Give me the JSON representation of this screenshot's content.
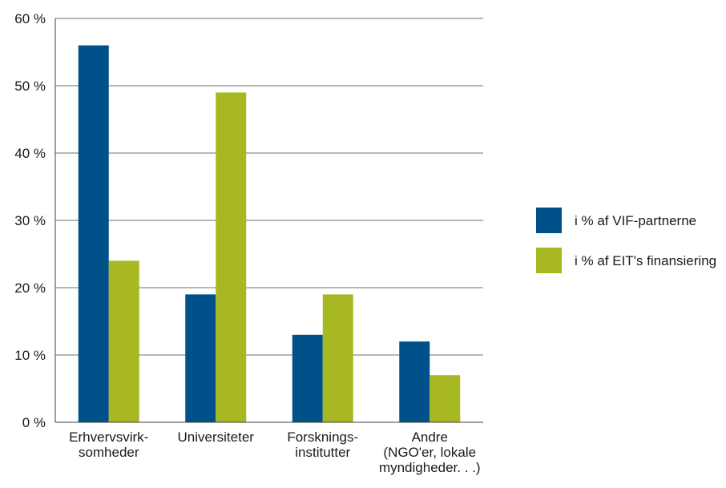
{
  "colors": {
    "series1": "#00518a",
    "series2": "#a8b822",
    "grid": "#404040",
    "text": "#1a1a1a"
  },
  "chart_data": {
    "type": "bar",
    "categories": [
      [
        "Erhvervsvirk-",
        "somheder"
      ],
      [
        "Universiteter"
      ],
      [
        "Forsknings-",
        "institutter"
      ],
      [
        "Andre",
        "(NGO'er, lokale",
        "myndigheder. . .)"
      ]
    ],
    "series": [
      {
        "name": "i % af VIF-partnerne",
        "values": [
          56,
          19,
          13,
          12
        ]
      },
      {
        "name": "i % af EIT's finansiering",
        "values": [
          24,
          49,
          19,
          7
        ]
      }
    ],
    "y_ticks": [
      "0 %",
      "10 %",
      "20 %",
      "30 %",
      "40 %",
      "50 %",
      "60 %"
    ],
    "ylim": [
      0,
      60
    ],
    "grid": true,
    "legend_position": "right"
  }
}
